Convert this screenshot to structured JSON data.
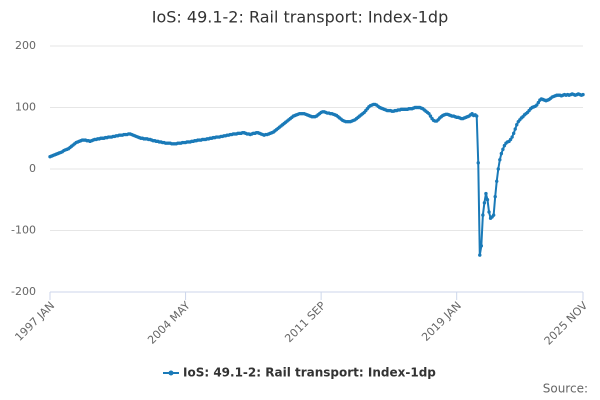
{
  "chart_data": {
    "type": "line",
    "title": "IoS: 49.1-2: Rail transport: Index-1dp",
    "source_label": "Source:",
    "categories": [
      "1997 JAN",
      null,
      null,
      null,
      null,
      null,
      null,
      null,
      null,
      null,
      null,
      null,
      null,
      null,
      null,
      null,
      null,
      null,
      null,
      null,
      null,
      null,
      null,
      null,
      null,
      null,
      null,
      null,
      null,
      null,
      null,
      null,
      null,
      null,
      null,
      null,
      null,
      null,
      null,
      null,
      null,
      null,
      null,
      null,
      null,
      null,
      null,
      null,
      null,
      null,
      null,
      null,
      null,
      null,
      null,
      null,
      null,
      null,
      null,
      null,
      null,
      null,
      null,
      null,
      null,
      null,
      null,
      null,
      null,
      null,
      null,
      null,
      null,
      null,
      null,
      null,
      null,
      null,
      null,
      null,
      null,
      null,
      null,
      null,
      null,
      null,
      null,
      null,
      "2004 MAY",
      null,
      null,
      null,
      null,
      null,
      null,
      null,
      null,
      null,
      null,
      null,
      null,
      null,
      null,
      null,
      null,
      null,
      null,
      null,
      null,
      null,
      null,
      null,
      null,
      null,
      null,
      null,
      null,
      null,
      null,
      null,
      null,
      null,
      null,
      null,
      null,
      null,
      null,
      null,
      null,
      null,
      null,
      null,
      null,
      null,
      null,
      null,
      null,
      null,
      null,
      null,
      null,
      null,
      null,
      null,
      null,
      null,
      null,
      null,
      null,
      null,
      null,
      null,
      null,
      null,
      null,
      null,
      null,
      null,
      null,
      null,
      null,
      null,
      null,
      null,
      null,
      null,
      null,
      null,
      null,
      null,
      null,
      null,
      null,
      null,
      null,
      null,
      "2011 SEP",
      null,
      null,
      null,
      null,
      null,
      null,
      null,
      null,
      null,
      null,
      null,
      null,
      null,
      null,
      null,
      null,
      null,
      null,
      null,
      null,
      null,
      null,
      null,
      null,
      null,
      null,
      null,
      null,
      null,
      null,
      null,
      null,
      null,
      null,
      null,
      null,
      null,
      null,
      null,
      null,
      null,
      null,
      null,
      null,
      null,
      null,
      null,
      null,
      null,
      null,
      null,
      null,
      null,
      null,
      null,
      null,
      null,
      null,
      null,
      null,
      null,
      null,
      null,
      null,
      null,
      null,
      null,
      null,
      null,
      null,
      null,
      null,
      null,
      null,
      null,
      null,
      null,
      null,
      null,
      null,
      null,
      null,
      null,
      null,
      null,
      null,
      null,
      "2019 JAN",
      null,
      null,
      null,
      null,
      null,
      null,
      null,
      null,
      null,
      null,
      null,
      null,
      null,
      null,
      null,
      null,
      null,
      null,
      null,
      null,
      null,
      null,
      null,
      null,
      null,
      null,
      null,
      null,
      null,
      null,
      null,
      null,
      null,
      null,
      null,
      null,
      null,
      null,
      null,
      null,
      null,
      null,
      null,
      null,
      null,
      null,
      null,
      null,
      null,
      null,
      null,
      null,
      null,
      null,
      null,
      null,
      null,
      null,
      null,
      null,
      null,
      null,
      null,
      null,
      null,
      null,
      null,
      null,
      null,
      null,
      null,
      null,
      null,
      null,
      null,
      null,
      null,
      null,
      null,
      null,
      null,
      "2025 NOV"
    ],
    "series": [
      {
        "name": "IoS: 49.1-2: Rail transport: Index-1dp",
        "color": "#1a7ab8",
        "values": [
          20,
          21,
          22,
          23,
          24,
          25,
          26,
          27,
          28,
          30,
          31,
          32,
          33,
          35,
          37,
          39,
          41,
          43,
          44,
          45,
          46,
          47,
          47,
          47,
          46,
          46,
          45,
          46,
          47,
          48,
          48,
          49,
          49,
          50,
          50,
          50,
          51,
          51,
          52,
          52,
          52,
          53,
          53,
          54,
          54,
          55,
          55,
          55,
          56,
          56,
          56,
          57,
          57,
          56,
          55,
          54,
          53,
          52,
          51,
          50,
          50,
          49,
          49,
          49,
          48,
          48,
          47,
          46,
          46,
          45,
          45,
          44,
          44,
          43,
          43,
          42,
          42,
          42,
          42,
          41,
          41,
          41,
          41,
          42,
          42,
          42,
          43,
          43,
          43,
          44,
          44,
          44,
          45,
          45,
          46,
          46,
          47,
          47,
          47,
          48,
          48,
          48,
          49,
          49,
          50,
          50,
          51,
          51,
          52,
          52,
          52,
          53,
          53,
          54,
          54,
          55,
          55,
          56,
          56,
          57,
          57,
          57,
          58,
          58,
          58,
          59,
          59,
          58,
          57,
          57,
          56,
          57,
          58,
          58,
          59,
          59,
          58,
          57,
          56,
          55,
          56,
          56,
          57,
          58,
          59,
          60,
          62,
          64,
          66,
          68,
          70,
          72,
          74,
          76,
          78,
          80,
          82,
          84,
          86,
          87,
          88,
          89,
          90,
          90,
          90,
          90,
          89,
          88,
          87,
          86,
          85,
          85,
          85,
          86,
          88,
          90,
          92,
          93,
          93,
          92,
          91,
          91,
          90,
          90,
          89,
          88,
          87,
          85,
          83,
          81,
          79,
          78,
          77,
          77,
          77,
          77,
          78,
          79,
          80,
          82,
          84,
          86,
          88,
          90,
          92,
          95,
          98,
          101,
          103,
          104,
          105,
          105,
          104,
          102,
          100,
          99,
          98,
          97,
          96,
          95,
          95,
          95,
          94,
          94,
          95,
          95,
          96,
          96,
          97,
          97,
          97,
          97,
          97,
          98,
          98,
          98,
          99,
          100,
          100,
          100,
          100,
          99,
          98,
          96,
          94,
          92,
          90,
          86,
          82,
          79,
          78,
          78,
          80,
          83,
          85,
          87,
          88,
          89,
          89,
          88,
          87,
          86,
          86,
          85,
          84,
          84,
          83,
          82,
          82,
          83,
          84,
          85,
          86,
          88,
          90,
          87,
          88,
          86,
          10,
          -140,
          -125,
          -75,
          -55,
          -40,
          -50,
          -70,
          -80,
          -78,
          -75,
          -45,
          -20,
          0,
          15,
          25,
          32,
          38,
          42,
          44,
          45,
          48,
          52,
          58,
          65,
          72,
          77,
          80,
          83,
          85,
          88,
          90,
          92,
          95,
          98,
          100,
          101,
          102,
          104,
          108,
          112,
          114,
          113,
          112,
          111,
          112,
          113,
          115,
          117,
          118,
          119,
          120,
          120,
          120,
          119,
          120,
          121,
          120,
          121,
          120,
          121,
          122,
          121,
          120,
          121,
          122,
          121,
          120,
          121
        ]
      }
    ],
    "ylim": [
      -200,
      200
    ],
    "yticks": [
      -200,
      -100,
      0,
      100,
      200
    ],
    "grid": true
  }
}
